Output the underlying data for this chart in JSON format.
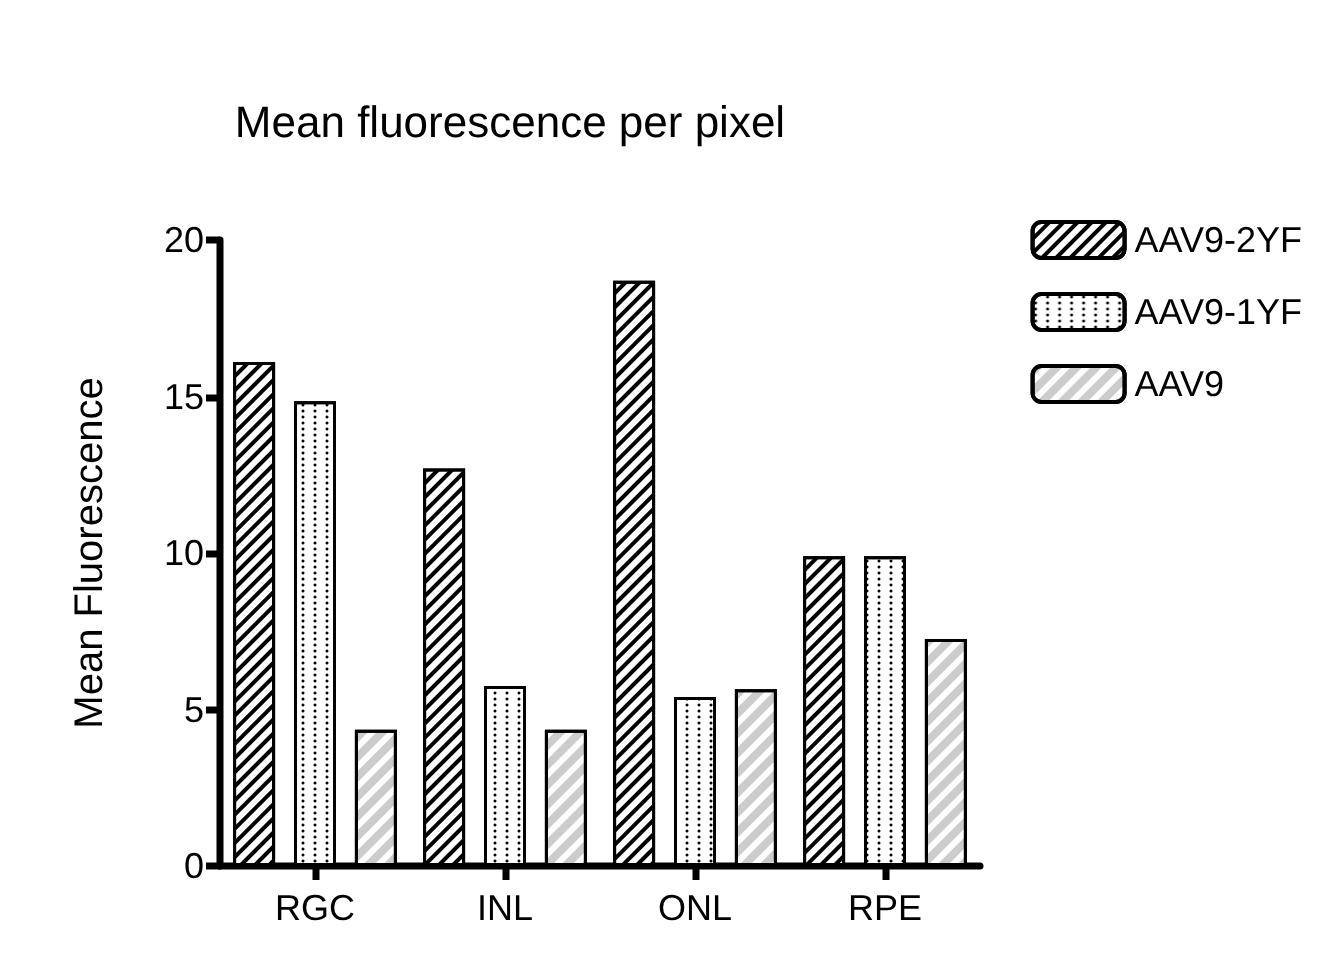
{
  "chart_data": {
    "type": "bar",
    "title": "Mean fluorescence per pixel",
    "ylabel": "Mean Fluorescence",
    "categories": [
      "RGC",
      "INL",
      "ONL",
      "RPE"
    ],
    "series": [
      {
        "name": "AAV9-2YF",
        "values": [
          16.1,
          12.7,
          18.7,
          9.9
        ]
      },
      {
        "name": "AAV9-1YF",
        "values": [
          14.85,
          5.75,
          5.4,
          9.9
        ]
      },
      {
        "name": "AAV9",
        "values": [
          4.35,
          4.35,
          5.65,
          7.25
        ]
      }
    ],
    "ylim": [
      0,
      20
    ],
    "yticks": [
      0,
      5,
      10,
      15,
      20
    ],
    "grid": false,
    "legend": "top right"
  }
}
